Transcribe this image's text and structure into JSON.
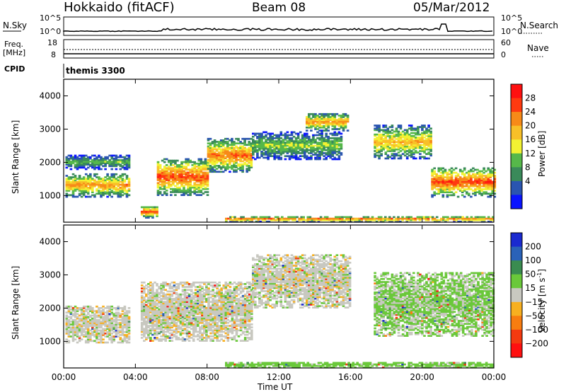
{
  "header": {
    "station": "Hokkaido (fitACF)",
    "beam": "Beam 08",
    "date": "05/Mar/2012"
  },
  "sky_panel": {
    "label": "N.Sky",
    "right_label": "N.Search",
    "left_ticks": [
      "10^5",
      "10^0"
    ],
    "right_ticks": [
      "10^5",
      "10^0"
    ]
  },
  "freq_panel": {
    "label_line1": "Freq.",
    "label_line2": "[MHz]",
    "left_ticks": [
      "18",
      "8"
    ],
    "right_label": "Nave",
    "right_ticks": [
      "60",
      "0"
    ]
  },
  "cpid_panel": {
    "label": "CPID",
    "value": "themis 3300"
  },
  "range_axis": {
    "label": "Slant Range [km]",
    "ticks": [
      "4000",
      "3000",
      "2000",
      "1000"
    ]
  },
  "time_axis": {
    "label": "Time UT",
    "ticks": [
      "00:00",
      "04:00",
      "08:00",
      "12:00",
      "16:00",
      "20:00",
      "00:00"
    ]
  },
  "power_colorbar": {
    "label": "Power [dB]",
    "ticks": [
      "28",
      "24",
      "20",
      "16",
      "12",
      "8",
      "4"
    ],
    "colors": [
      "#0a14ff",
      "#2a55b0",
      "#3a8a5a",
      "#56b84a",
      "#f2f232",
      "#f8c028",
      "#f78a18",
      "#ff3a10",
      "#ff1010"
    ]
  },
  "velocity_colorbar": {
    "label_main": "Velocity [m s",
    "label_sup": "-1",
    "label_end": "]",
    "ticks": [
      "200",
      "100",
      "50",
      "15",
      "−15",
      "−50",
      "−100",
      "−200"
    ],
    "colors": [
      "#1a2ad0",
      "#2a62b8",
      "#3a8c50",
      "#6ac83a",
      "#c8c8c0",
      "#f8b020",
      "#f87d10",
      "#f43a10",
      "#ff1010"
    ]
  },
  "chart_data": {
    "type": "heatmap",
    "title": "Hokkaido (fitACF)   Beam 08   05/Mar/2012",
    "xlabel": "Time UT",
    "ylabel": "Slant Range [km]",
    "x_ticks": [
      "00:00",
      "04:00",
      "08:00",
      "12:00",
      "16:00",
      "20:00",
      "00:00"
    ],
    "xlim_hours": [
      0,
      24
    ],
    "ylim_km": [
      200,
      4500
    ],
    "series": [
      {
        "name": "Power [dB]",
        "clim": [
          0,
          30
        ],
        "echo_regions": [
          {
            "t0": 0.1,
            "t1": 3.6,
            "r_mid": 1300,
            "r_half": 350,
            "peak_db": 24
          },
          {
            "t0": 0.1,
            "t1": 3.6,
            "r_mid": 2000,
            "r_half": 220,
            "peak_db": 14
          },
          {
            "t0": 4.3,
            "t1": 5.2,
            "r_mid": 500,
            "r_half": 180,
            "peak_db": 28
          },
          {
            "t0": 5.2,
            "t1": 8.0,
            "r_mid": 1550,
            "r_half": 550,
            "peak_db": 28
          },
          {
            "t0": 8.0,
            "t1": 10.5,
            "r_mid": 2200,
            "r_half": 500,
            "peak_db": 26
          },
          {
            "t0": 10.5,
            "t1": 15.5,
            "r_mid": 2500,
            "r_half": 420,
            "peak_db": 16
          },
          {
            "t0": 13.5,
            "t1": 15.8,
            "r_mid": 3200,
            "r_half": 260,
            "peak_db": 24
          },
          {
            "t0": 17.3,
            "t1": 20.5,
            "r_mid": 2600,
            "r_half": 500,
            "peak_db": 22
          },
          {
            "t0": 20.5,
            "t1": 24.0,
            "r_mid": 1400,
            "r_half": 450,
            "peak_db": 28
          },
          {
            "t0": 9.0,
            "t1": 24.0,
            "r_mid": 280,
            "r_half": 80,
            "peak_db": 26
          }
        ]
      },
      {
        "name": "Velocity [m s-1]",
        "clim": [
          -200,
          200
        ],
        "echo_regions": [
          {
            "t0": 0.1,
            "t1": 3.6,
            "r_mid": 1500,
            "r_half": 550,
            "velocity": 0
          },
          {
            "t0": 4.3,
            "t1": 10.5,
            "r_mid": 1900,
            "r_half": 900,
            "velocity": 0
          },
          {
            "t0": 10.5,
            "t1": 16.0,
            "r_mid": 2800,
            "r_half": 800,
            "velocity": 0
          },
          {
            "t0": 17.3,
            "t1": 24.0,
            "r_mid": 2100,
            "r_half": 950,
            "velocity": 20
          },
          {
            "t0": 9.0,
            "t1": 24.0,
            "r_mid": 280,
            "r_half": 80,
            "velocity": 30
          }
        ]
      }
    ]
  }
}
